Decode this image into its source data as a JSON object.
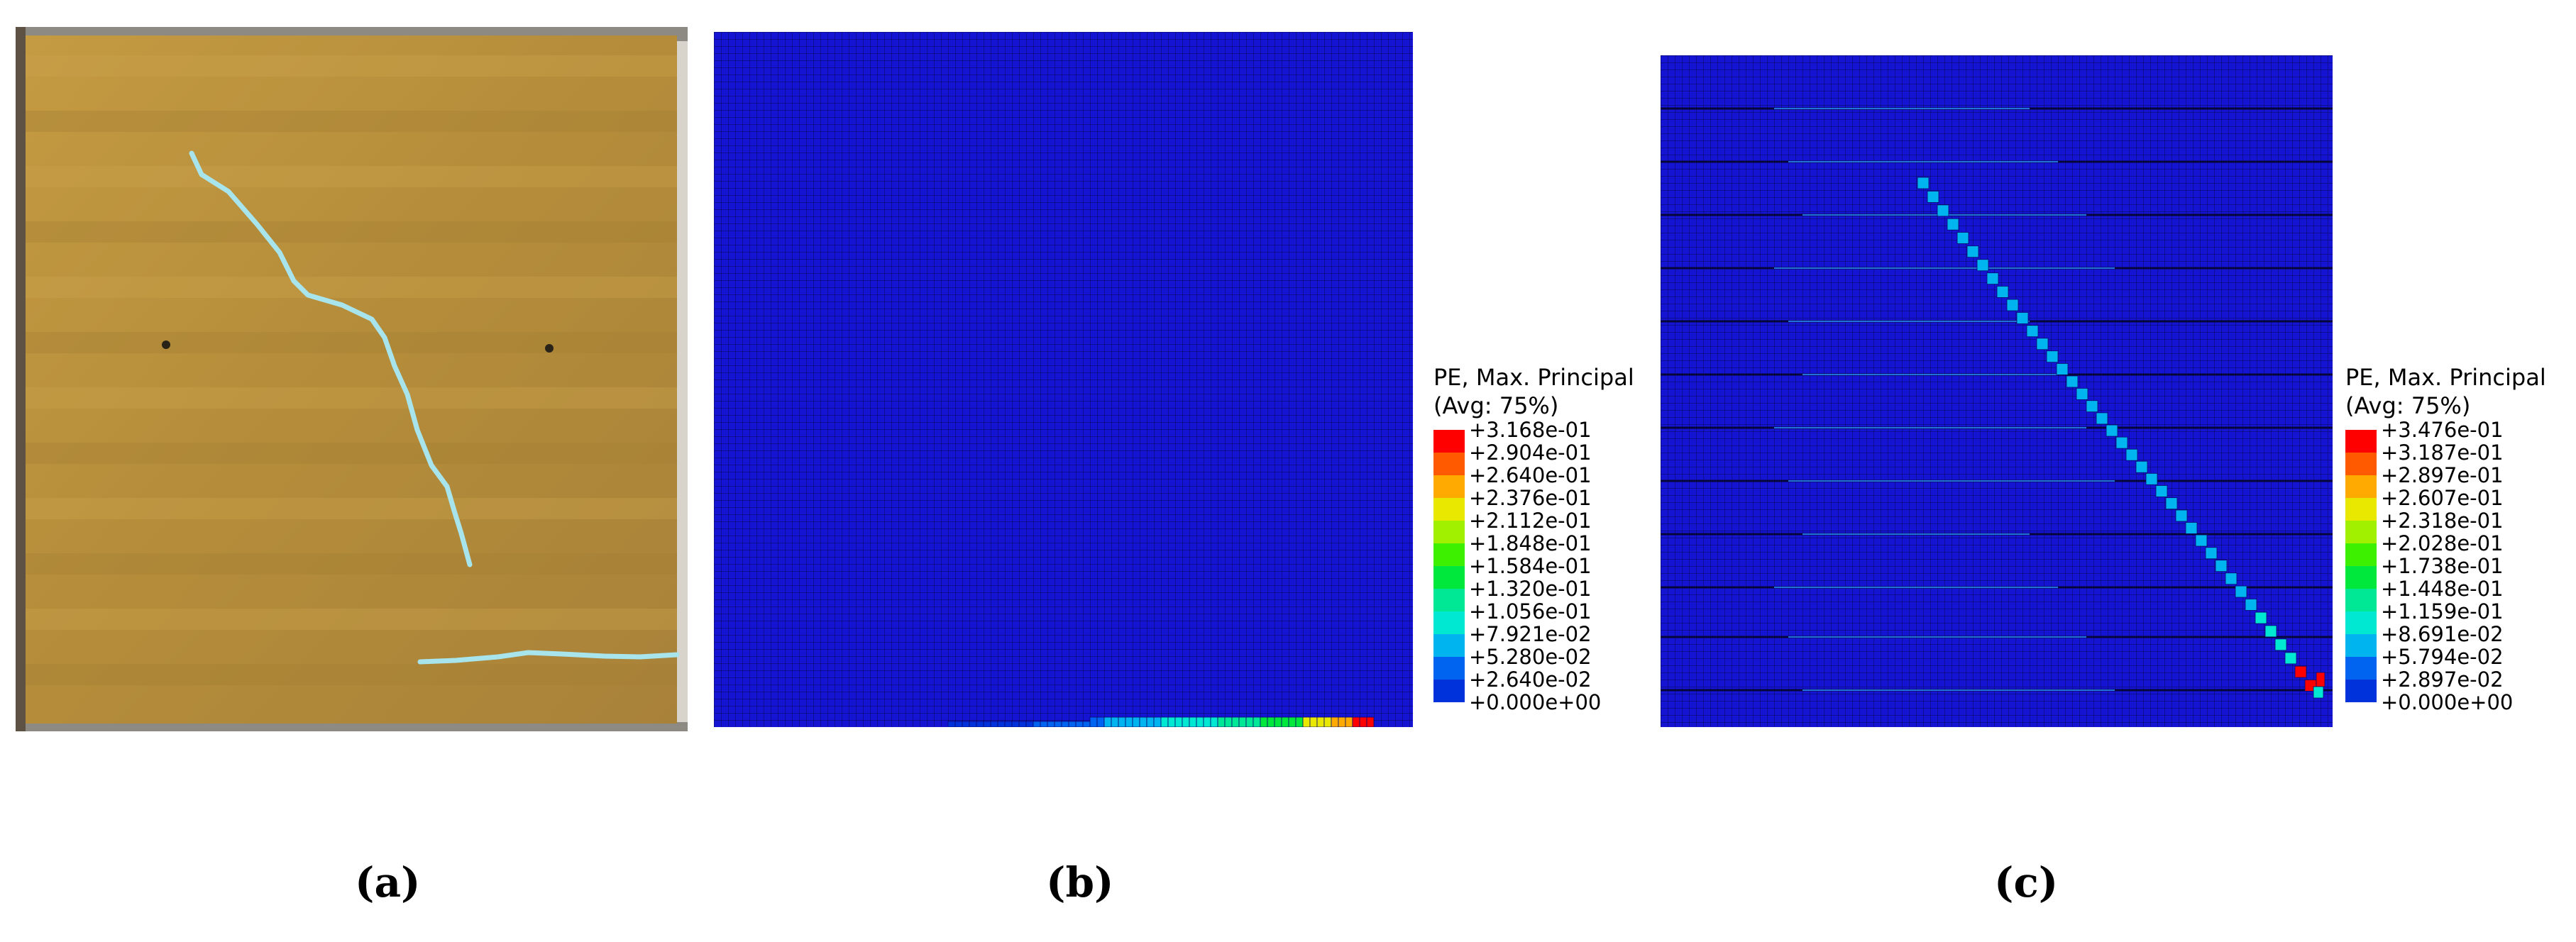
{
  "panels": [
    {
      "id": "a",
      "caption": "(a)"
    },
    {
      "id": "b",
      "caption": "(b)"
    },
    {
      "id": "c",
      "caption": "(c)"
    }
  ],
  "legend_b": {
    "title_line1": "PE, Max. Principal",
    "title_line2": "(Avg: 75%)",
    "labels": [
      "+3.168e-01",
      "+2.904e-01",
      "+2.640e-01",
      "+2.376e-01",
      "+2.112e-01",
      "+1.848e-01",
      "+1.584e-01",
      "+1.320e-01",
      "+1.056e-01",
      "+7.921e-02",
      "+5.280e-02",
      "+2.640e-02",
      "+0.000e+00"
    ]
  },
  "legend_c": {
    "title_line1": "PE, Max. Principal",
    "title_line2": "(Avg: 75%)",
    "labels": [
      "+3.476e-01",
      "+3.187e-01",
      "+2.897e-01",
      "+2.607e-01",
      "+2.318e-01",
      "+2.028e-01",
      "+1.738e-01",
      "+1.448e-01",
      "+1.159e-01",
      "+8.691e-02",
      "+5.794e-02",
      "+2.897e-02",
      "+0.000e+00"
    ]
  },
  "colors": {
    "mesh_blue": "#1414d2",
    "mesh_line": "#0a0a6e",
    "crack_line": "#a8e4ec",
    "wall_ochre": "#b8923c",
    "contour_scale": [
      "#ff0000",
      "#ff5a00",
      "#ffaa00",
      "#e8e800",
      "#a0f000",
      "#3cf000",
      "#00e83c",
      "#00e896",
      "#00e8d2",
      "#00b4f0",
      "#0064f0",
      "#0032dc",
      "#0000f0"
    ]
  }
}
